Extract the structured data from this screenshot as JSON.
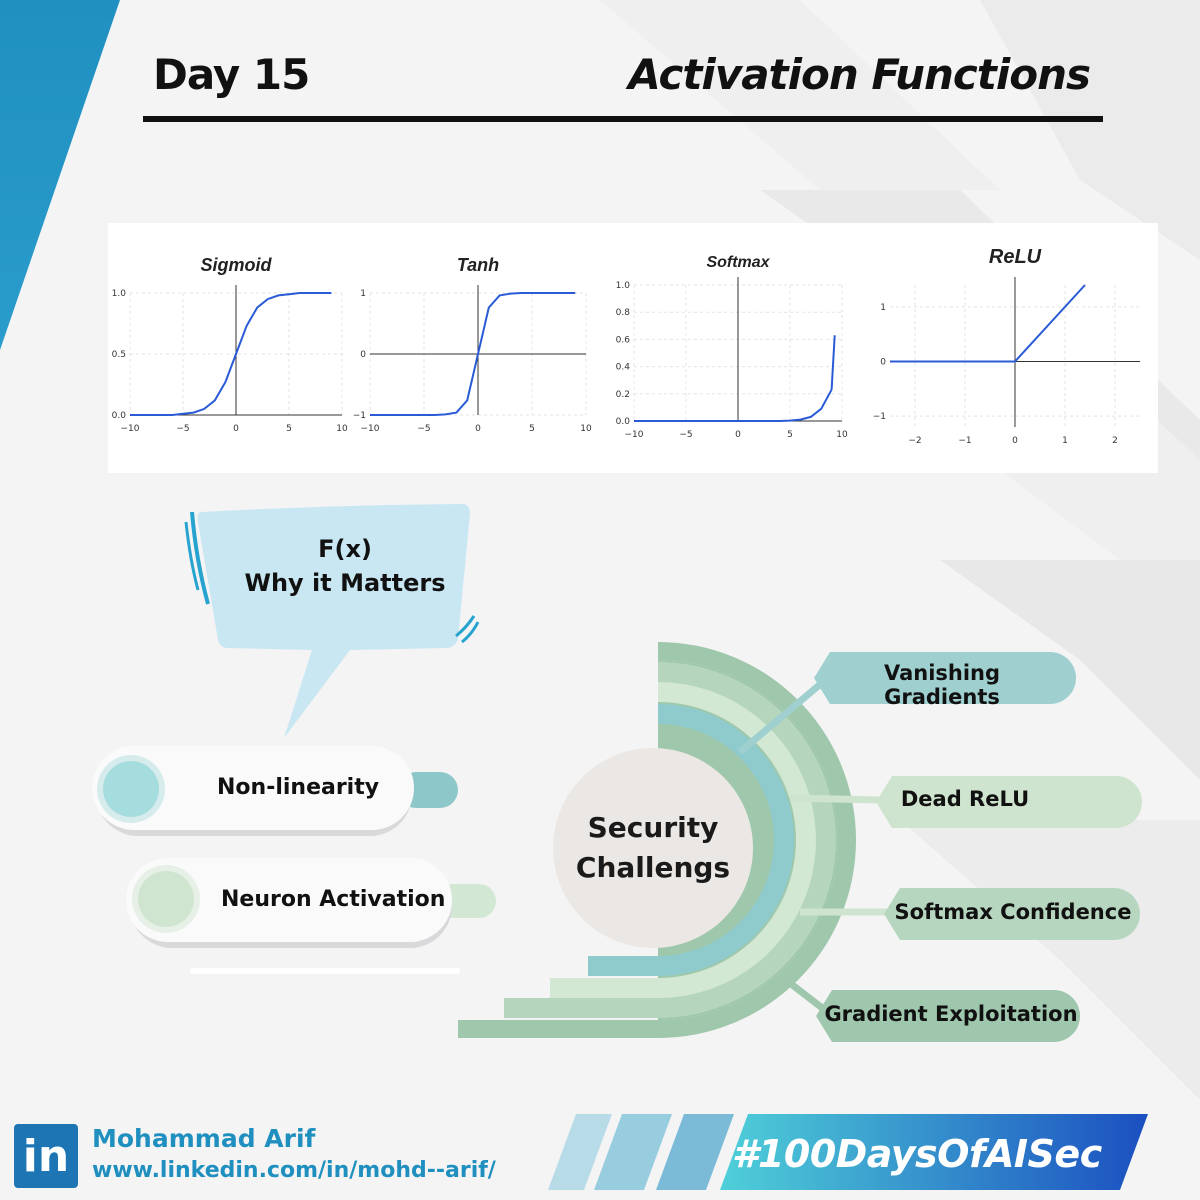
{
  "header": {
    "day": "Day 15",
    "topic": "Activation Functions"
  },
  "plots": [
    {
      "title": "Sigmoid",
      "type": "line",
      "x_ticks": [
        "−10",
        "−5",
        "0",
        "5",
        "10"
      ],
      "y_ticks": [
        "0.0",
        "0.5",
        "1.0"
      ],
      "xlim": [
        -10,
        10
      ],
      "ylim": [
        0,
        1
      ],
      "series": [
        {
          "x": [
            -10,
            -9,
            -8,
            -7,
            -6,
            -5,
            -4,
            -3,
            -2,
            -1,
            0,
            1,
            2,
            3,
            4,
            5,
            6,
            7,
            8,
            9
          ],
          "y": [
            0.0,
            0.0,
            0.0,
            0.0,
            0.0,
            0.01,
            0.02,
            0.05,
            0.12,
            0.27,
            0.5,
            0.73,
            0.88,
            0.95,
            0.98,
            0.99,
            1.0,
            1.0,
            1.0,
            1.0
          ]
        }
      ]
    },
    {
      "title": "Tanh",
      "type": "line",
      "x_ticks": [
        "−10",
        "−5",
        "0",
        "5",
        "10"
      ],
      "y_ticks": [
        "−1",
        "0",
        "1"
      ],
      "xlim": [
        -10,
        10
      ],
      "ylim": [
        -1,
        1
      ],
      "series": [
        {
          "x": [
            -10,
            -9,
            -8,
            -7,
            -6,
            -5,
            -4,
            -3,
            -2,
            -1,
            0,
            1,
            2,
            3,
            4,
            5,
            6,
            7,
            8,
            9
          ],
          "y": [
            -1,
            -1,
            -1,
            -1,
            -1,
            -1,
            -1,
            -0.99,
            -0.96,
            -0.76,
            0,
            0.76,
            0.96,
            0.99,
            1,
            1,
            1,
            1,
            1,
            1
          ]
        }
      ]
    },
    {
      "title": "Softmax",
      "type": "line",
      "x_ticks": [
        "−10",
        "−5",
        "0",
        "5",
        "10"
      ],
      "y_ticks": [
        "0.0",
        "0.2",
        "0.4",
        "0.6",
        "0.8",
        "1.0"
      ],
      "xlim": [
        -10,
        10
      ],
      "ylim": [
        0,
        1
      ],
      "series": [
        {
          "x": [
            -10,
            -9,
            -8,
            -7,
            -6,
            -5,
            -4,
            -3,
            -2,
            -1,
            0,
            1,
            2,
            3,
            4,
            5,
            6,
            7,
            8,
            9
          ],
          "y": [
            0,
            0,
            0,
            0,
            0,
            0,
            0,
            0,
            0,
            0,
            0,
            0,
            0,
            0,
            0,
            0.003,
            0.01,
            0.03,
            0.09,
            0.23
          ]
        },
        {
          "x": [
            9,
            9.3
          ],
          "y": [
            0.23,
            0.63
          ]
        }
      ]
    },
    {
      "title": "ReLU",
      "type": "line",
      "x_ticks": [
        "−2",
        "−1",
        "0",
        "1",
        "2"
      ],
      "y_ticks": [
        "−1",
        "0",
        "1"
      ],
      "xlim": [
        -2.5,
        2.5
      ],
      "ylim": [
        -1.2,
        1.4
      ],
      "series": [
        {
          "x": [
            -2.5,
            0,
            1.4
          ],
          "y": [
            0,
            0,
            1.4
          ]
        }
      ]
    }
  ],
  "bubble": {
    "line1": "F(x)",
    "line2": "Why it Matters"
  },
  "pills": [
    {
      "label": "Non-linearity",
      "color": "#9fd8d8"
    },
    {
      "label": "Neuron Activation",
      "color": "#cfe5d0"
    }
  ],
  "hub": {
    "line1": "Security",
    "line2": "Challengs"
  },
  "branches": [
    {
      "label": "Vanishing Gradients",
      "color": "#9fd0cf"
    },
    {
      "label": "Dead ReLU",
      "color": "#cfe4cf"
    },
    {
      "label": "Softmax Confidence",
      "color": "#b6d6c0"
    },
    {
      "label": "Gradient Exploitation",
      "color": "#9fc7ad"
    }
  ],
  "footer": {
    "logo": "in",
    "name": "Mohammad Arif",
    "url": "www.linkedin.com/in/mohd--arif/",
    "hashtag": "#100DaysOfAISec"
  },
  "colors": {
    "accent_blue": "#1f8fbf",
    "plot_line": "#2a5bd7",
    "teal": "#8cc9c9",
    "sage": "#a3c9ad"
  }
}
